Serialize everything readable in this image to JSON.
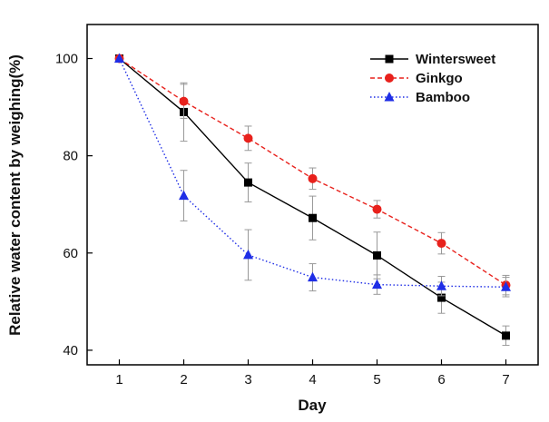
{
  "chart_data": {
    "type": "line",
    "xlabel": "Day",
    "ylabel": "Relative water content by weighing(%)",
    "x": [
      1,
      2,
      3,
      4,
      5,
      6,
      7
    ],
    "xlim": [
      0.5,
      7.5
    ],
    "ylim": [
      37,
      107
    ],
    "x_ticks": [
      "1",
      "2",
      "3",
      "4",
      "5",
      "6",
      "7"
    ],
    "y_ticks": [
      "40",
      "60",
      "80",
      "100"
    ],
    "y_tick_values": [
      40,
      60,
      80,
      100
    ],
    "legend_position": "top-right",
    "series": [
      {
        "name": "Wintersweet",
        "color": "#000000",
        "marker": "square",
        "line_style": "solid",
        "values": [
          100,
          89,
          74.5,
          67.2,
          59.5,
          50.8,
          43
        ],
        "errors": [
          0,
          6,
          4,
          4.5,
          4.8,
          3.2,
          2
        ]
      },
      {
        "name": "Ginkgo",
        "color": "#e8211c",
        "marker": "circle",
        "line_style": "dashed",
        "values": [
          100,
          91.2,
          83.6,
          75.3,
          69,
          62,
          53.4
        ],
        "errors": [
          0,
          3.5,
          2.5,
          2.2,
          1.8,
          2.2,
          2
        ]
      },
      {
        "name": "Bamboo",
        "color": "#1f2ee6",
        "marker": "triangle",
        "line_style": "dotted",
        "values": [
          100,
          71.8,
          59.6,
          55,
          53.5,
          53.2,
          53
        ],
        "errors": [
          0,
          5.2,
          5.2,
          2.8,
          2,
          2,
          2
        ]
      }
    ]
  }
}
